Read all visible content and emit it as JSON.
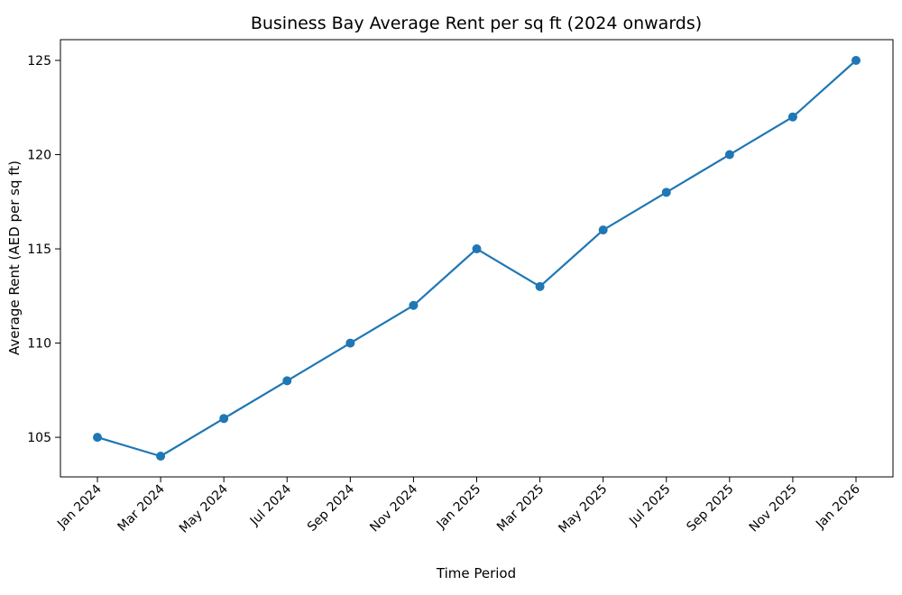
{
  "chart_data": {
    "type": "line",
    "title": "Business Bay Average Rent per sq ft (2024 onwards)",
    "xlabel": "Time Period",
    "ylabel": "Average Rent (AED per sq ft)",
    "categories": [
      "Jan 2024",
      "Mar 2024",
      "May 2024",
      "Jul 2024",
      "Sep 2024",
      "Nov 2024",
      "Jan 2025",
      "Mar 2025",
      "May 2025",
      "Jul 2025",
      "Sep 2025",
      "Nov 2025",
      "Jan 2026"
    ],
    "series": [
      {
        "values": [
          105,
          104,
          106,
          108,
          110,
          112,
          115,
          113,
          116,
          118,
          120,
          122,
          125
        ]
      }
    ],
    "ylim": [
      102.9,
      126.1
    ],
    "yticks": [
      105,
      110,
      115,
      120,
      125
    ],
    "grid": false,
    "line_color": "#1f77b4",
    "marker": "circle"
  }
}
